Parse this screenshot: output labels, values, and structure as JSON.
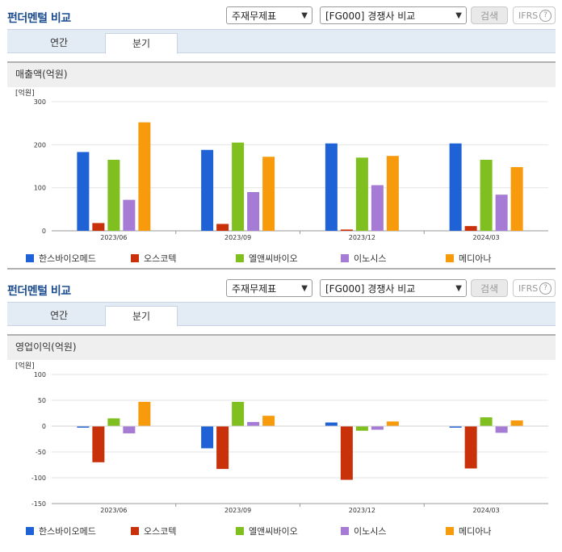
{
  "sections": [
    {
      "title": "펀더멘털 비교",
      "select1": "주재무제표",
      "select2": "[FG000] 경쟁사 비교",
      "search_label": "검색",
      "ifrs_label": "IFRS",
      "ifrs_help": "?",
      "tabs": [
        "연간",
        "분기"
      ],
      "active_tab": "분기",
      "chart_title": "매출액(억원)"
    },
    {
      "title": "펀더멘털 비교",
      "select1": "주재무제표",
      "select2": "[FG000] 경쟁사 비교",
      "search_label": "검색",
      "ifrs_label": "IFRS",
      "ifrs_help": "?",
      "tabs": [
        "연간",
        "분기"
      ],
      "active_tab": "분기",
      "chart_title": "영업이익(억원)"
    }
  ],
  "legend": [
    {
      "name": "한스바이오메드",
      "color": "#1f62d6"
    },
    {
      "name": "오스코텍",
      "color": "#c8310a"
    },
    {
      "name": "엘앤씨바이오",
      "color": "#7fbf1f"
    },
    {
      "name": "이노시스",
      "color": "#a67bd6"
    },
    {
      "name": "메디아나",
      "color": "#f79a0c"
    }
  ],
  "chart_data": [
    {
      "type": "bar",
      "title": "매출액(억원)",
      "unit": "[억원]",
      "categories": [
        "2023/06",
        "2023/09",
        "2023/12",
        "2024/03"
      ],
      "ylim": [
        0,
        300
      ],
      "yticks": [
        0,
        100,
        200,
        300
      ],
      "grid": true,
      "legend_position": "bottom",
      "series": [
        {
          "name": "한스바이오메드",
          "color": "#1f62d6",
          "values": [
            183,
            188,
            203,
            203
          ]
        },
        {
          "name": "오스코텍",
          "color": "#c8310a",
          "values": [
            18,
            16,
            3,
            11
          ]
        },
        {
          "name": "엘앤씨바이오",
          "color": "#7fbf1f",
          "values": [
            165,
            205,
            170,
            165
          ]
        },
        {
          "name": "이노시스",
          "color": "#a67bd6",
          "values": [
            72,
            90,
            106,
            84
          ]
        },
        {
          "name": "메디아나",
          "color": "#f79a0c",
          "values": [
            252,
            172,
            174,
            148
          ]
        }
      ]
    },
    {
      "type": "bar",
      "title": "영업이익(억원)",
      "unit": "[억원]",
      "categories": [
        "2023/06",
        "2023/09",
        "2023/12",
        "2024/03"
      ],
      "ylim": [
        -150,
        100
      ],
      "yticks": [
        -150,
        -100,
        -50,
        0,
        50,
        100
      ],
      "grid": true,
      "legend_position": "bottom",
      "series": [
        {
          "name": "한스바이오메드",
          "color": "#1f62d6",
          "values": [
            -3,
            -43,
            7,
            -3
          ]
        },
        {
          "name": "오스코텍",
          "color": "#c8310a",
          "values": [
            -70,
            -83,
            -104,
            -82
          ]
        },
        {
          "name": "엘앤씨바이오",
          "color": "#7fbf1f",
          "values": [
            15,
            47,
            -9,
            17
          ]
        },
        {
          "name": "이노시스",
          "color": "#a67bd6",
          "values": [
            -14,
            8,
            -7,
            -13
          ]
        },
        {
          "name": "메디아나",
          "color": "#f79a0c",
          "values": [
            47,
            20,
            9,
            11
          ]
        }
      ]
    }
  ]
}
